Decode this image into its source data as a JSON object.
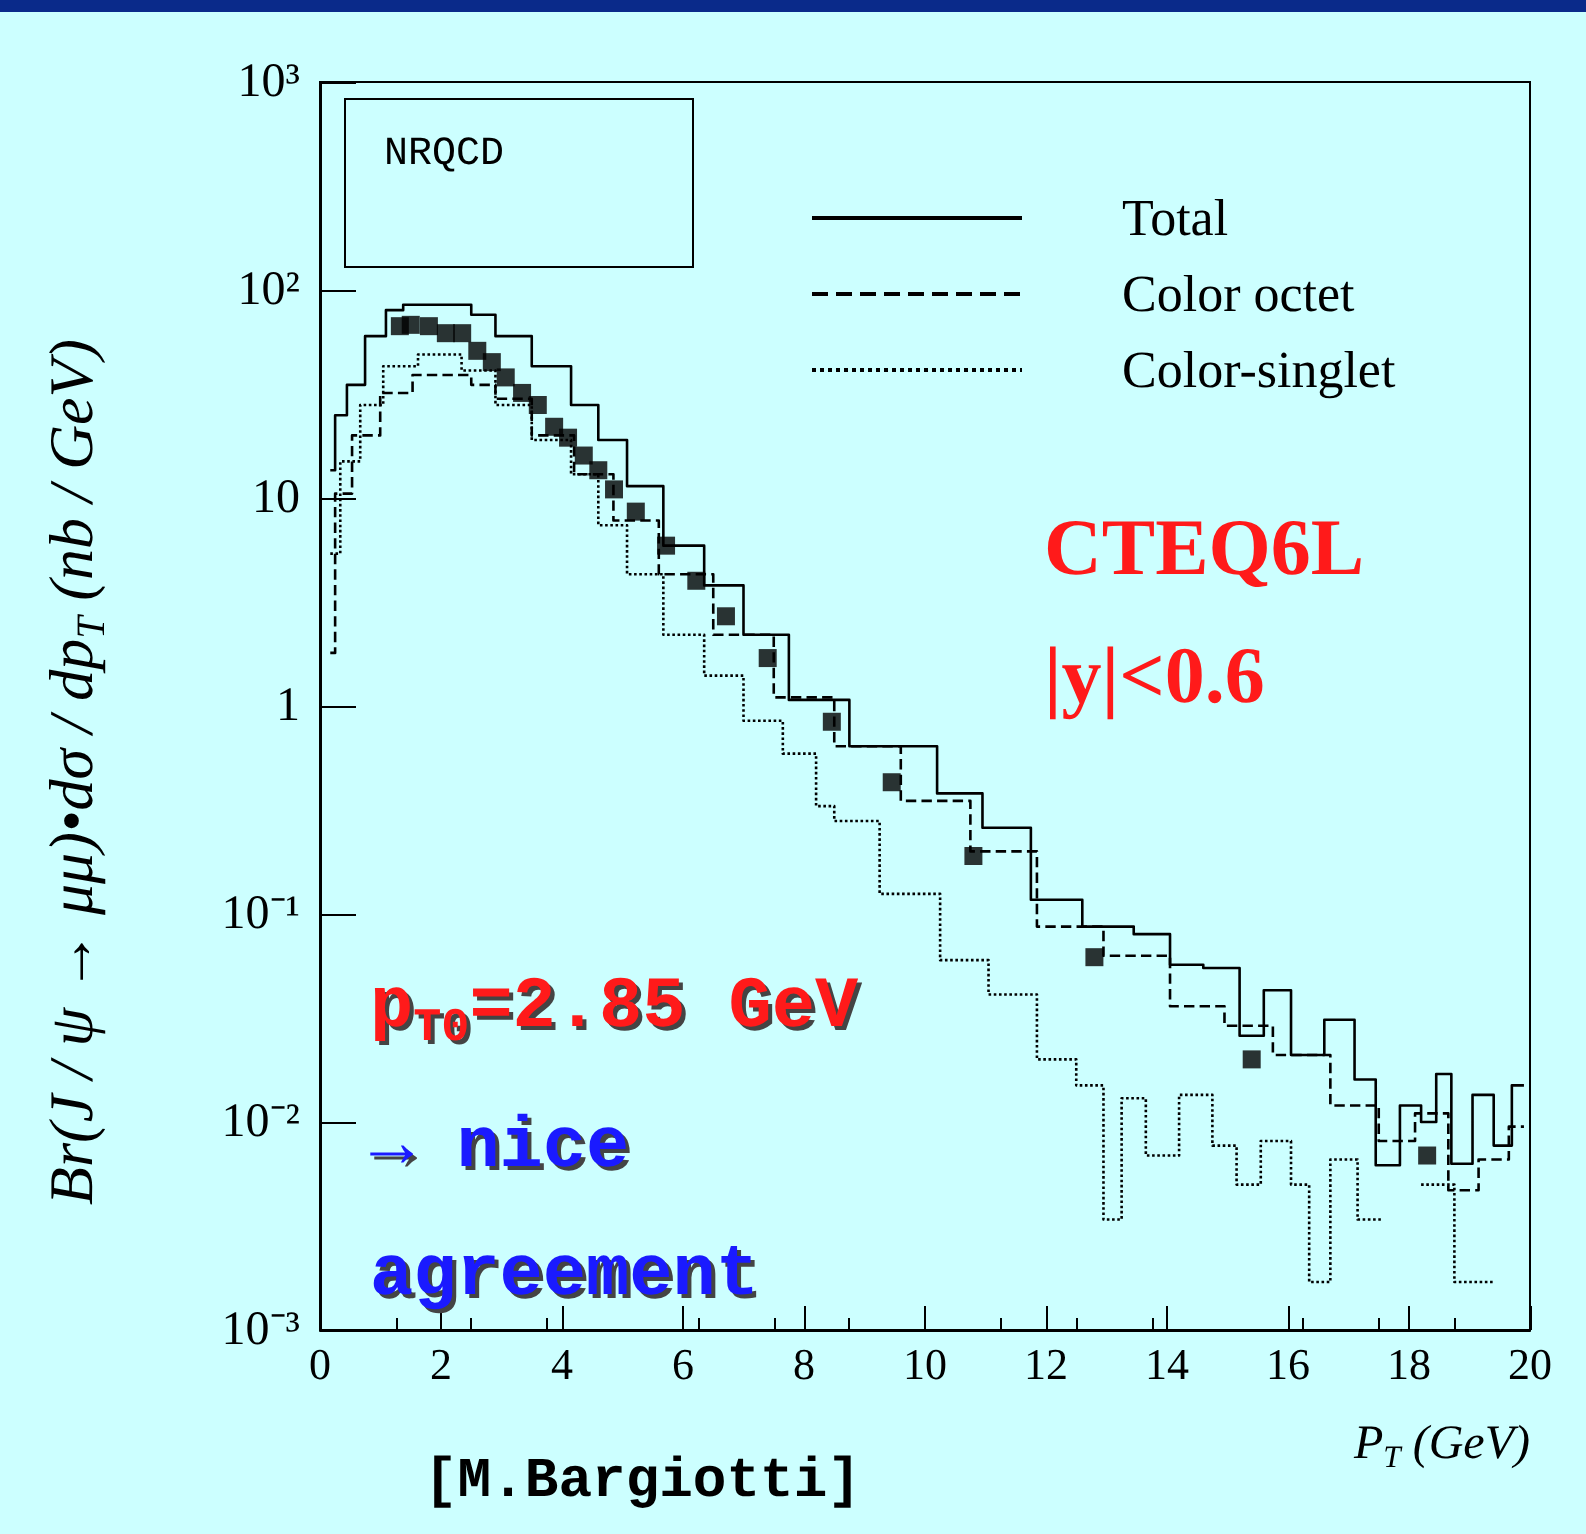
{
  "chart_data": {
    "type": "step",
    "xlabel": "P$_{T}$ (GeV)",
    "ylabel": "Br(J / ψ → μμ)•dσ / dp$_{T}$ (nb / GeV)",
    "xlim": [
      0,
      20
    ],
    "xticks": [
      0,
      2,
      4,
      6,
      8,
      10,
      12,
      14,
      16,
      18,
      20
    ],
    "ylim": [
      0.001,
      1000
    ],
    "log": "y",
    "yticks": [
      {
        "value": 0.001,
        "label": "10⁻³"
      },
      {
        "value": 0.01,
        "label": "10⁻²"
      },
      {
        "value": 0.1,
        "label": "10⁻¹"
      },
      {
        "value": 1,
        "label": "1"
      },
      {
        "value": 10,
        "label": "10"
      },
      {
        "value": 100,
        "label": "10²"
      },
      {
        "value": 1000,
        "label": "10³"
      }
    ],
    "grid": false,
    "legend": "top right",
    "series": [
      {
        "name": "Total",
        "color": "#000000",
        "line_style": "solid",
        "x": [
          0.17,
          0.33,
          0.56,
          0.93,
          1.25,
          1.5,
          2.3,
          2.7,
          3.1,
          3.9,
          4.4,
          4.8,
          5.35,
          6.0,
          6.7,
          7.3,
          8.2,
          9.3,
          9.8,
          10.6,
          11.3,
          12.2,
          13.0,
          13.9,
          14.2,
          15.0,
          15.4,
          15.8,
          16.3,
          16.9,
          17.3,
          17.6,
          18.1,
          18.3,
          18.6,
          18.8,
          19.3,
          19.5,
          19.9
        ],
        "values": [
          13.6,
          25,
          35,
          60,
          80,
          85,
          85,
          76,
          60,
          43,
          28,
          19,
          11.4,
          5.9,
          3.8,
          2.2,
          1.07,
          0.64,
          0.64,
          0.38,
          0.26,
          0.117,
          0.087,
          0.08,
          0.057,
          0.055,
          0.026,
          0.043,
          0.021,
          0.031,
          0.016,
          0.0062,
          0.012,
          0.01,
          0.017,
          0.0063,
          0.0135,
          0.0077,
          0.015
        ]
      },
      {
        "name": "Color octet",
        "color": "#000000",
        "line_style": "dashed",
        "x": [
          0.17,
          0.33,
          0.73,
          1.26,
          1.8,
          2.3,
          2.7,
          3.1,
          3.9,
          4.5,
          5.2,
          6.0,
          7.0,
          8.0,
          9.0,
          10.2,
          11.3,
          12.4,
          13.5,
          14.6,
          15.3,
          16.2,
          17.2,
          17.8,
          18.4,
          18.9,
          19.4,
          19.9
        ],
        "values": [
          1.8,
          10.5,
          20,
          32,
          39,
          39,
          35,
          30,
          20,
          13,
          7.8,
          4.3,
          2.2,
          1.1,
          0.64,
          0.35,
          0.2,
          0.087,
          0.063,
          0.036,
          0.029,
          0.021,
          0.012,
          0.0081,
          0.011,
          0.0047,
          0.0066,
          0.0095
        ]
      },
      {
        "name": "Color-singlet",
        "color": "#000000",
        "line_style": "dotted",
        "x": [
          0.17,
          0.5,
          0.83,
          1.26,
          1.98,
          2.7,
          3.1,
          3.9,
          4.4,
          4.8,
          5.35,
          6.0,
          6.7,
          7.3,
          8.0,
          8.4,
          8.6,
          9.9,
          10.6,
          11.5,
          12.2,
          12.8,
          13.1,
          13.4,
          13.9,
          14.5,
          15.0,
          15.3,
          15.8,
          16.3,
          16.4,
          17.0,
          17.3,
          17.8,
          18.6,
          18.9,
          19.4
        ],
        "values": [
          5.4,
          15,
          28,
          43,
          49,
          41,
          28,
          19,
          13,
          7.4,
          4.3,
          2.2,
          1.4,
          0.85,
          0.59,
          0.33,
          0.28,
          0.125,
          0.06,
          0.041,
          0.02,
          0.015,
          0.0034,
          0.013,
          0.0069,
          0.0135,
          0.0077,
          0.005,
          0.0081,
          0.005,
          0.0017,
          0.0066,
          0.0034,
          null,
          0.005,
          0.0017,
          0.0017
        ]
      },
      {
        "type": "scatter",
        "color": "#000000",
        "marker": "square",
        "x": [
          1.32,
          1.5,
          1.8,
          2.08,
          2.35,
          2.6,
          2.84,
          3.07,
          3.34,
          3.6,
          3.87,
          4.1,
          4.36,
          4.6,
          4.86,
          5.22,
          5.72,
          6.22,
          6.71,
          7.4,
          8.46,
          9.45,
          10.8,
          12.8,
          15.4,
          18.3
        ],
        "values": [
          67,
          68,
          67,
          62,
          62,
          51,
          45,
          38,
          32,
          28,
          22,
          19.5,
          16,
          13.6,
          11,
          8.6,
          5.9,
          4.0,
          2.7,
          1.7,
          0.84,
          0.43,
          0.19,
          0.062,
          0.02,
          0.0069
        ]
      }
    ],
    "annotations": [
      "NRQCD",
      "CTEQ6L",
      "|y|<0.6",
      "p$_{T0}$=2.85 GeV",
      "→ nice",
      "agreement",
      "[M.Bargiotti]"
    ]
  }
}
